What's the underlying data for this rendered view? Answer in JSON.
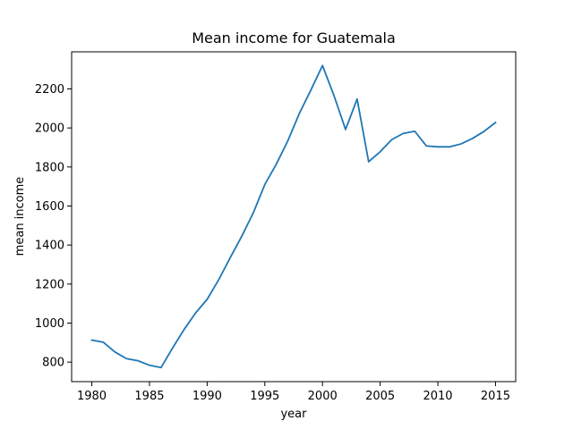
{
  "chart_data": {
    "type": "line",
    "title": "Mean income for Guatemala",
    "xlabel": "year",
    "ylabel": "mean income",
    "xlim": [
      1978.25,
      2016.75
    ],
    "ylim": [
      700,
      2390
    ],
    "x_ticks": [
      1980,
      1985,
      1990,
      1995,
      2000,
      2005,
      2010,
      2015
    ],
    "y_ticks": [
      800,
      1000,
      1200,
      1400,
      1600,
      1800,
      2000,
      2200
    ],
    "grid": false,
    "legend": "none",
    "series_color": "#1f77b4",
    "x": [
      1980,
      1981,
      1982,
      1983,
      1984,
      1985,
      1986,
      1987,
      1988,
      1989,
      1990,
      1991,
      1992,
      1993,
      1994,
      1995,
      1996,
      1997,
      1998,
      1999,
      2000,
      2001,
      2002,
      2003,
      2004,
      2005,
      2006,
      2007,
      2008,
      2009,
      2010,
      2011,
      2012,
      2013,
      2014,
      2015
    ],
    "y": [
      913,
      902,
      852,
      818,
      807,
      784,
      772,
      872,
      967,
      1052,
      1122,
      1222,
      1335,
      1445,
      1565,
      1710,
      1815,
      1935,
      2075,
      2195,
      2320,
      2165,
      1992,
      2148,
      1827,
      1878,
      1940,
      1972,
      1983,
      1908,
      1903,
      1903,
      1918,
      1946,
      1982,
      2028
    ]
  }
}
